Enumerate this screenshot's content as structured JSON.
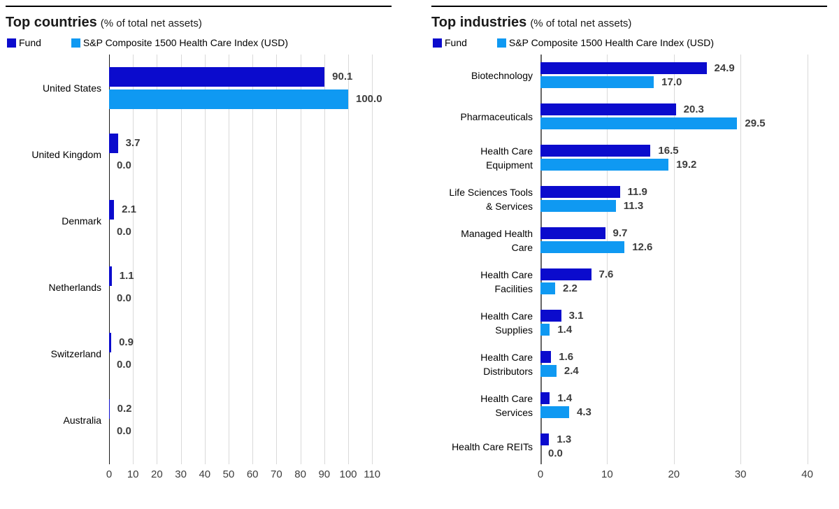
{
  "figure": {
    "background": "#ffffff",
    "fund_color": "#0b0bcd",
    "index_color": "#0f99f2"
  },
  "chart_data": [
    {
      "type": "bar",
      "orientation": "horizontal",
      "title": "Top countries",
      "subtitle": "(% of total net assets)",
      "legend_position": "top",
      "grid": "vertical",
      "value_labels": true,
      "categories": [
        "United States",
        "United Kingdom",
        "Denmark",
        "Netherlands",
        "Switzerland",
        "Australia"
      ],
      "series": [
        {
          "name": "Fund",
          "color": "#0b0bcd",
          "values": [
            90.1,
            3.7,
            2.1,
            1.1,
            0.9,
            0.2
          ],
          "labels": [
            "90.1",
            "3.7",
            "2.1",
            "1.1",
            "0.9",
            "0.2"
          ]
        },
        {
          "name": "S&P Composite 1500 Health Care Index (USD)",
          "color": "#0f99f2",
          "values": [
            100.0,
            0.0,
            0.0,
            0.0,
            0.0,
            0.0
          ],
          "labels": [
            "100.0",
            "0.0",
            "0.0",
            "0.0",
            "0.0",
            "0.0"
          ]
        }
      ],
      "xlim": [
        0,
        110
      ],
      "xticks": [
        0,
        10,
        20,
        30,
        40,
        50,
        60,
        70,
        80,
        90,
        100,
        110
      ],
      "xlabel": "",
      "ylabel": ""
    },
    {
      "type": "bar",
      "orientation": "horizontal",
      "title": "Top industries",
      "subtitle": "(% of total net assets)",
      "legend_position": "top",
      "grid": "vertical",
      "value_labels": true,
      "categories": [
        "Biotechnology",
        "Pharmaceuticals",
        "Health Care\nEquipment",
        "Life Sciences Tools\n& Services",
        "Managed Health\nCare",
        "Health Care\nFacilities",
        "Health Care\nSupplies",
        "Health Care\nDistributors",
        "Health Care\nServices",
        "Health Care REITs"
      ],
      "series": [
        {
          "name": "Fund",
          "color": "#0b0bcd",
          "values": [
            24.9,
            20.3,
            16.5,
            11.9,
            9.7,
            7.6,
            3.1,
            1.6,
            1.4,
            1.3
          ],
          "labels": [
            "24.9",
            "20.3",
            "16.5",
            "11.9",
            "9.7",
            "7.6",
            "3.1",
            "1.6",
            "1.4",
            "1.3"
          ]
        },
        {
          "name": "S&P Composite 1500 Health Care Index (USD)",
          "color": "#0f99f2",
          "values": [
            17.0,
            29.5,
            19.2,
            11.3,
            12.6,
            2.2,
            1.4,
            2.4,
            4.3,
            0.0
          ],
          "labels": [
            "17.0",
            "29.5",
            "19.2",
            "11.3",
            "12.6",
            "2.2",
            "1.4",
            "2.4",
            "4.3",
            "0.0"
          ]
        }
      ],
      "xlim": [
        0,
        40
      ],
      "xticks": [
        0,
        10,
        20,
        30,
        40
      ],
      "xlabel": "",
      "ylabel": ""
    }
  ]
}
